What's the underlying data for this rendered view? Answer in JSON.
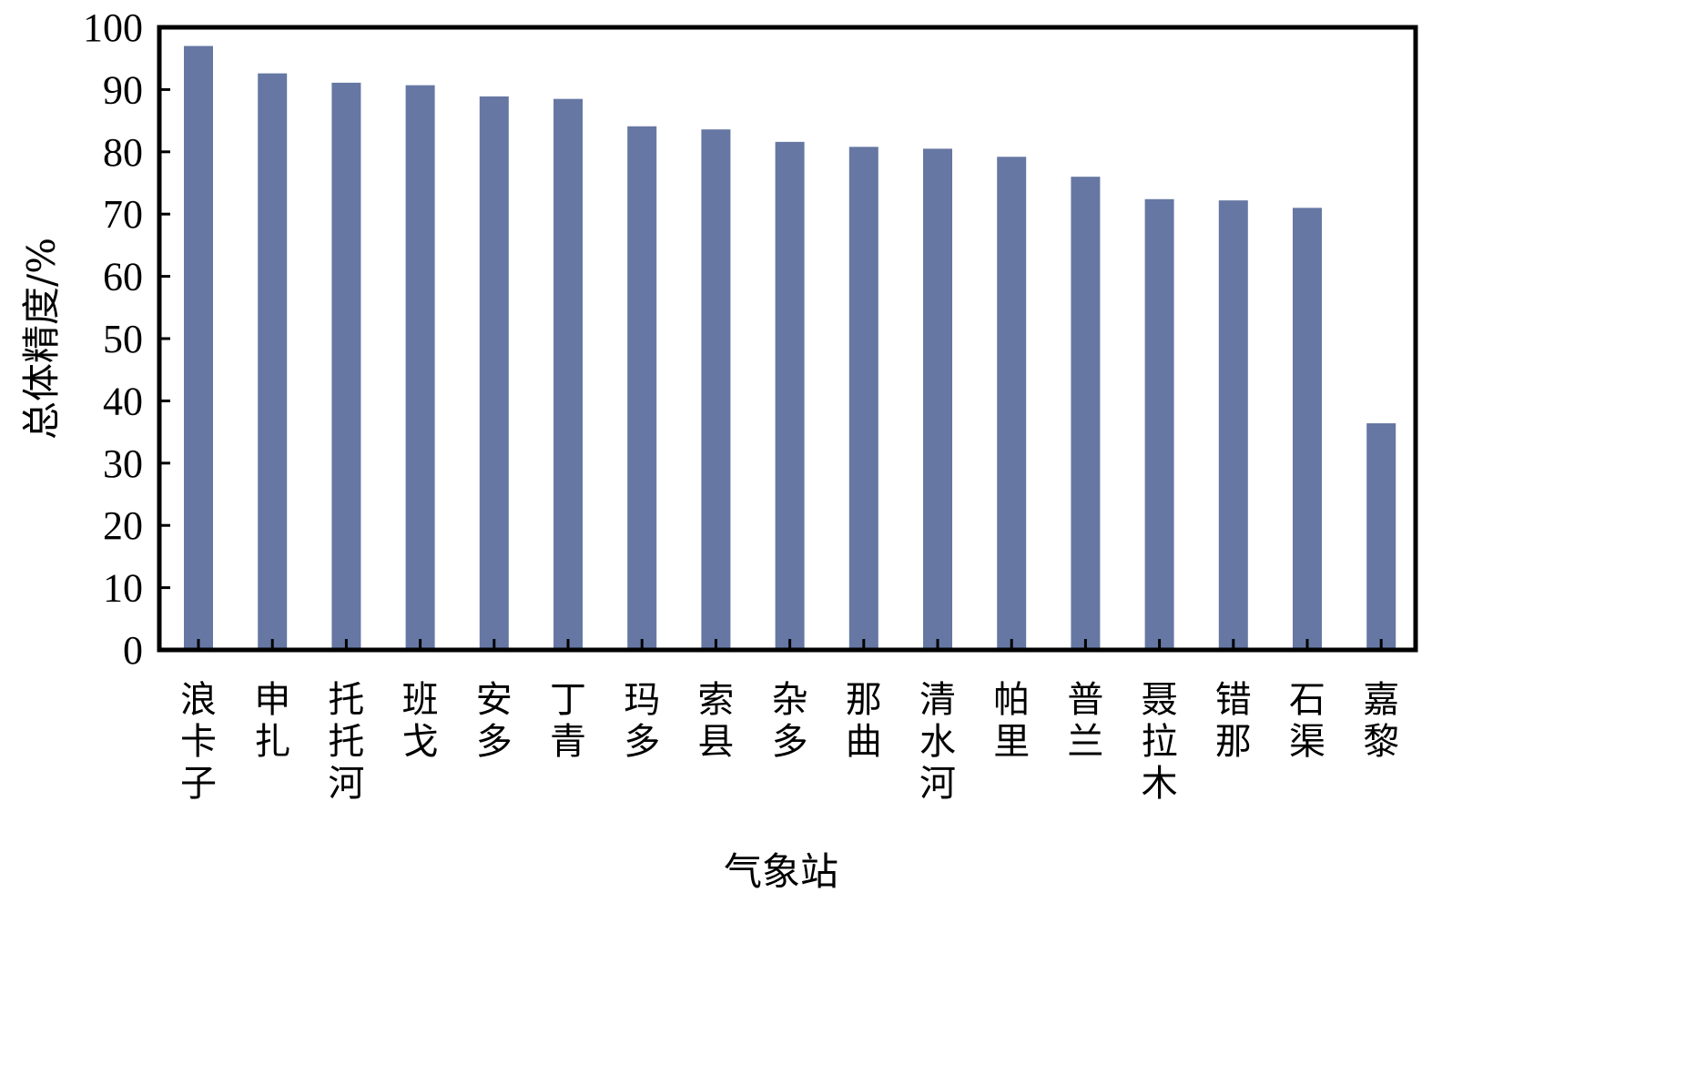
{
  "chart_data": {
    "type": "bar",
    "title": "",
    "xlabel": "气象站",
    "ylabel": "总体精度/%",
    "ylim": [
      0,
      100
    ],
    "yticks": [
      "0",
      "10",
      "20",
      "30",
      "40",
      "50",
      "60",
      "70",
      "80",
      "90",
      "100"
    ],
    "grid": false,
    "bar_color": "#6677a3",
    "categories": [
      "浪卡子",
      "申扎",
      "托托河",
      "班戈",
      "安多",
      "丁青",
      "玛多",
      "索县",
      "杂多",
      "那曲",
      "清水河",
      "帕里",
      "普兰",
      "聂拉木",
      "错那",
      "石渠",
      "嘉黎"
    ],
    "values": [
      97.0,
      92.6,
      91.1,
      90.7,
      88.9,
      88.5,
      84.1,
      83.6,
      81.6,
      80.8,
      80.5,
      79.2,
      76.0,
      72.4,
      72.2,
      71.0,
      36.4
    ]
  }
}
